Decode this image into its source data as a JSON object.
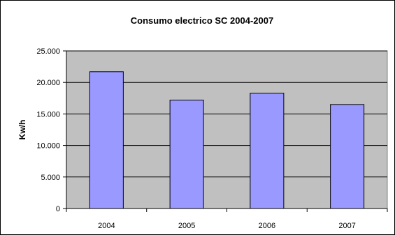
{
  "chart_data": {
    "type": "bar",
    "title": "Consumo electrico SC 2004-2007",
    "xlabel": "",
    "ylabel": "Kw/h",
    "categories": [
      "2004",
      "2005",
      "2006",
      "2007"
    ],
    "series": [
      {
        "values": [
          21700,
          17200,
          18300,
          16500
        ]
      }
    ],
    "ylim": [
      0,
      25000
    ],
    "yticks": [
      0,
      5000,
      10000,
      15000,
      20000,
      25000
    ],
    "ytick_labels": [
      "0",
      "5.000",
      "10.000",
      "15.000",
      "20.000",
      "25.000"
    ],
    "grid": true,
    "legend": "none",
    "colors": {
      "bar_fill": "#9999ff",
      "bar_stroke": "#000000",
      "plot_background": "#c0c0c0",
      "grid": "#000000",
      "axis": "#000000",
      "text": "#000000"
    }
  }
}
